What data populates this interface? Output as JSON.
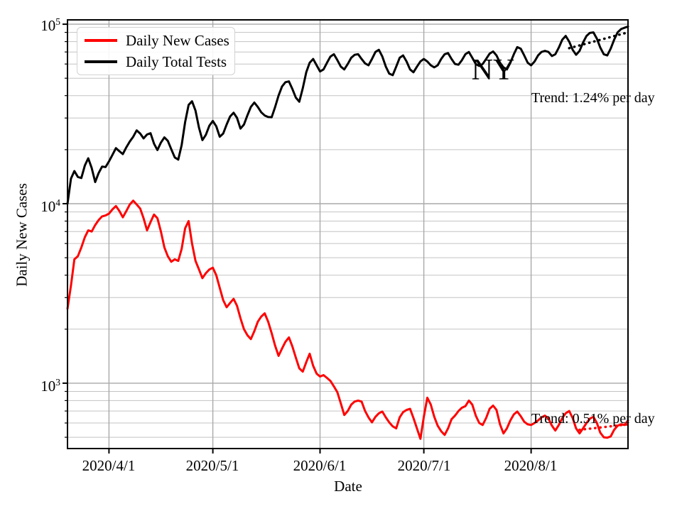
{
  "chart_data": {
    "type": "line",
    "title": "",
    "xlabel": "Date",
    "ylabel": "Daily New Cases",
    "annotation": "NY",
    "x_start_date": "2020/3/20",
    "x_end_date": "2020/8/29",
    "x_days_total": 162,
    "x_ticks": [
      {
        "day": 12,
        "label": "2020/4/1"
      },
      {
        "day": 42,
        "label": "2020/5/1"
      },
      {
        "day": 73,
        "label": "2020/6/1"
      },
      {
        "day": 103,
        "label": "2020/7/1"
      },
      {
        "day": 134,
        "label": "2020/8/1"
      }
    ],
    "y_scale": "log",
    "y_log_min": 2.636,
    "y_log_max": 5.024,
    "y_major_ticks": [
      {
        "base": "10",
        "exp": "5",
        "value": 100000
      },
      {
        "base": "10",
        "exp": "4",
        "value": 10000
      },
      {
        "base": "10",
        "exp": "3",
        "value": 1000
      }
    ],
    "grid": {
      "which": "both",
      "minor_color": "#c3c3c3",
      "major_color": "#a9a9a9"
    },
    "legend_position": "upper-left",
    "series": [
      {
        "name": "Daily New Cases",
        "color": "#ff0000",
        "linewidth": 3,
        "values": [
          2600,
          3500,
          4900,
          5100,
          5700,
          6500,
          7100,
          7000,
          7600,
          8100,
          8500,
          8600,
          8800,
          9300,
          9700,
          9100,
          8400,
          9100,
          9900,
          10400,
          9900,
          9400,
          8300,
          7100,
          7900,
          8700,
          8300,
          7000,
          5700,
          5100,
          4750,
          4900,
          4800,
          5600,
          7300,
          8000,
          6000,
          4800,
          4300,
          3850,
          4100,
          4300,
          4400,
          4000,
          3400,
          2900,
          2650,
          2800,
          2950,
          2700,
          2300,
          2000,
          1850,
          1760,
          1950,
          2200,
          2350,
          2450,
          2200,
          1900,
          1620,
          1420,
          1560,
          1700,
          1800,
          1600,
          1390,
          1210,
          1160,
          1310,
          1460,
          1250,
          1130,
          1090,
          1110,
          1070,
          1030,
          960,
          890,
          770,
          665,
          700,
          760,
          790,
          800,
          790,
          700,
          645,
          605,
          650,
          680,
          695,
          645,
          605,
          575,
          560,
          645,
          690,
          710,
          720,
          640,
          560,
          490,
          650,
          830,
          760,
          650,
          580,
          540,
          515,
          560,
          630,
          660,
          700,
          730,
          745,
          800,
          760,
          660,
          600,
          585,
          640,
          720,
          750,
          710,
          590,
          525,
          560,
          620,
          670,
          695,
          655,
          610,
          590,
          585,
          600,
          620,
          645,
          660,
          635,
          580,
          545,
          585,
          640,
          680,
          700,
          640,
          560,
          525,
          560,
          600,
          635,
          650,
          600,
          530,
          500,
          497,
          505,
          550,
          580,
          590,
          585,
          620
        ]
      },
      {
        "name": "Daily Total Tests",
        "color": "#000000",
        "linewidth": 3,
        "values": [
          10000,
          13800,
          15200,
          14100,
          13900,
          16300,
          17900,
          15800,
          13200,
          14800,
          16100,
          16000,
          17200,
          18700,
          20400,
          19600,
          18900,
          20600,
          22200,
          23600,
          25600,
          24600,
          23100,
          24300,
          24700,
          21600,
          19900,
          21900,
          23400,
          22400,
          20100,
          18100,
          17600,
          21200,
          28500,
          35500,
          37200,
          33000,
          26500,
          22600,
          24200,
          27200,
          28900,
          27000,
          23600,
          24600,
          27600,
          30600,
          32100,
          30100,
          26200,
          27600,
          31100,
          34600,
          36600,
          34600,
          32300,
          31000,
          30400,
          30300,
          34500,
          40000,
          45000,
          47500,
          48000,
          43500,
          39000,
          37000,
          44000,
          54000,
          61000,
          64000,
          59000,
          54500,
          56000,
          61000,
          66000,
          68000,
          63000,
          58000,
          56000,
          60000,
          65000,
          67500,
          68000,
          64000,
          60500,
          59000,
          64000,
          70000,
          72000,
          66000,
          58000,
          53000,
          52000,
          58000,
          65000,
          67000,
          62000,
          56000,
          54000,
          58000,
          62000,
          64000,
          62000,
          59000,
          57500,
          59000,
          64000,
          68000,
          69000,
          64000,
          60000,
          59500,
          63000,
          68000,
          70000,
          65000,
          60000,
          58500,
          60000,
          64000,
          68500,
          70500,
          67000,
          61000,
          57500,
          56000,
          61000,
          68000,
          74500,
          73000,
          67000,
          61000,
          59000,
          62000,
          67000,
          70000,
          71000,
          70000,
          66500,
          68000,
          74000,
          82000,
          86000,
          80000,
          72000,
          67500,
          71000,
          79000,
          86000,
          89500,
          90000,
          83000,
          74000,
          68000,
          67000,
          73000,
          82000,
          90000,
          94000,
          95500,
          97000
        ]
      }
    ],
    "trend_lines": [
      {
        "label": "Trend: 1.24% per day",
        "series": "Daily Total Tests",
        "color": "#000000",
        "style": "dotted",
        "start_day": 145,
        "end_day": 162,
        "start_value": 73500,
        "end_value": 90000
      },
      {
        "label": "Trend: 0.51% per day",
        "series": "Daily New Cases",
        "color": "#ff0000",
        "style": "dotted",
        "start_day": 148,
        "end_day": 162,
        "start_value": 550,
        "end_value": 590
      }
    ]
  }
}
